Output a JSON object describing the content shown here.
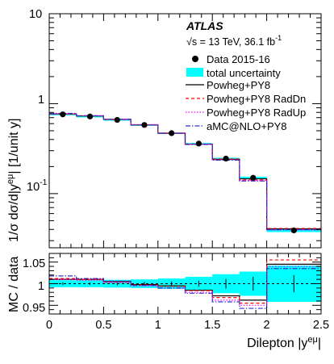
{
  "chart_data": [
    {
      "type": "step",
      "panel": "main",
      "experiment": "ATLAS",
      "energy_label": "√s = 13 TeV, 36.1 fb",
      "energy_label_sup": "-1",
      "ylabel": "1/σ dσ/d|y",
      "ylabel_sup": "eμ",
      "ylabel_tail": "| [1/unit y]",
      "yscale": "log",
      "ylim": [
        0.025,
        10
      ],
      "xlim": [
        0,
        2.5
      ],
      "y_ticks": [
        "10",
        "1",
        "10"
      ],
      "y_tick_sup": "-1",
      "bin_edges": [
        0,
        0.25,
        0.5,
        0.75,
        1.0,
        1.25,
        1.5,
        1.75,
        2.0,
        2.5
      ],
      "data": {
        "name": "Data 2015-16",
        "x": [
          0.125,
          0.375,
          0.625,
          0.875,
          1.125,
          1.375,
          1.625,
          1.875,
          2.25
        ],
        "y": [
          0.76,
          0.72,
          0.66,
          0.58,
          0.47,
          0.36,
          0.245,
          0.15,
          0.039
        ],
        "yerr": [
          0.01,
          0.01,
          0.01,
          0.01,
          0.008,
          0.006,
          0.005,
          0.004,
          0.001
        ]
      },
      "uncertainty": {
        "name": "total uncertainty",
        "color": "#00ffff",
        "rel_half_width": [
          0.008,
          0.008,
          0.009,
          0.01,
          0.012,
          0.016,
          0.022,
          0.028,
          0.042
        ]
      },
      "series": [
        {
          "name": "Powheg+PY8",
          "color": "#000000",
          "dash": "solid",
          "values": [
            0.77,
            0.73,
            0.67,
            0.58,
            0.47,
            0.355,
            0.24,
            0.146,
            0.0405
          ]
        },
        {
          "name": "Powheg+PY8 RadDn",
          "color": "#ff0000",
          "dash": "dashed",
          "values": [
            0.77,
            0.73,
            0.665,
            0.58,
            0.47,
            0.355,
            0.243,
            0.142,
            0.041
          ]
        },
        {
          "name": "Powheg+PY8 RadUp",
          "color": "#ff00ff",
          "dash": "dotted",
          "values": [
            0.775,
            0.735,
            0.67,
            0.585,
            0.47,
            0.355,
            0.238,
            0.14,
            0.0395
          ]
        },
        {
          "name": "aMC@NLO+PY8",
          "color": "#3333cc",
          "dash": "dashdot",
          "values": [
            0.78,
            0.735,
            0.67,
            0.58,
            0.467,
            0.352,
            0.236,
            0.138,
            0.0398
          ]
        }
      ]
    },
    {
      "type": "step",
      "panel": "ratio",
      "ylabel": "MC / data",
      "xlabel": "Dilepton |y",
      "xlabel_sup": "eμ",
      "xlabel_tail": "|",
      "ylim": [
        0.93,
        1.07
      ],
      "xlim": [
        0,
        2.5
      ],
      "y_ticks": [
        0.95,
        1,
        1.05
      ],
      "x_ticks": [
        0,
        0.5,
        1,
        1.5,
        2,
        2.5
      ],
      "bin_edges": [
        0,
        0.25,
        0.5,
        0.75,
        1.0,
        1.25,
        1.5,
        1.75,
        2.0,
        2.5
      ],
      "uncertainty": {
        "name": "total uncertainty",
        "color": "#00ffff",
        "rel_half_width": [
          0.008,
          0.008,
          0.009,
          0.01,
          0.012,
          0.016,
          0.022,
          0.028,
          0.042
        ]
      },
      "data_stat_err": [
        0.003,
        0.003,
        0.004,
        0.004,
        0.005,
        0.007,
        0.011,
        0.016,
        0.02
      ],
      "series": [
        {
          "name": "Powheg+PY8",
          "color": "#000000",
          "dash": "solid",
          "values": [
            1.01,
            1.01,
            1.005,
            0.998,
            0.995,
            0.985,
            0.972,
            0.962,
            1.045
          ]
        },
        {
          "name": "Powheg+PY8 RadDn",
          "color": "#ff0000",
          "dash": "dashed",
          "values": [
            1.012,
            1.01,
            1.004,
            0.997,
            0.994,
            0.984,
            0.968,
            0.955,
            1.055
          ]
        },
        {
          "name": "Powheg+PY8 RadUp",
          "color": "#ff00ff",
          "dash": "dotted",
          "values": [
            1.01,
            1.008,
            1.003,
            0.995,
            0.99,
            0.98,
            0.962,
            0.95,
            1.04
          ]
        },
        {
          "name": "aMC@NLO+PY8",
          "color": "#3333cc",
          "dash": "dashdot",
          "values": [
            1.018,
            1.012,
            1.006,
            0.996,
            0.99,
            0.978,
            0.958,
            0.943,
            1.035
          ]
        }
      ]
    }
  ]
}
